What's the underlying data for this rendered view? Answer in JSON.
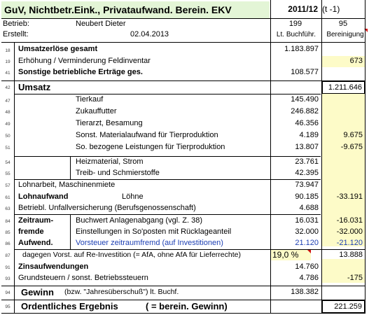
{
  "header": {
    "title": "GuV, Nichtbetr.Eink., Privataufwand. Berein. EKV",
    "year": "2011/12",
    "year_suffix": "(t -1)",
    "betrieb_label": "Betrieb:",
    "betrieb_value": "Neubert Dieter",
    "col1_no": "199",
    "col2_no": "95",
    "erstellt_label": "Erstellt:",
    "erstellt_value": "02.04.2013",
    "col1_head": "Lt. Buchführ.",
    "col2_head": "Bereinigung"
  },
  "rows": [
    {
      "nr": "18",
      "label": "Umsatzerlöse gesamt",
      "v1": "1.183.897",
      "v2": ""
    },
    {
      "nr": "19",
      "label": "Erhöhung / Verminderung Feldinventar",
      "v1": "",
      "v2": "673"
    },
    {
      "nr": "41",
      "label": "Sonstige betriebliche Erträge ges.",
      "v1": "108.577",
      "v2": ""
    },
    {
      "nr": "42",
      "label": "Umsatz",
      "v1": "",
      "v2": "1.211.646"
    },
    {
      "nr": "47",
      "label": "Tierkauf",
      "v1": "145.490",
      "v2": ""
    },
    {
      "nr": "48",
      "label": "Zukauffutter",
      "v1": "246.882",
      "v2": ""
    },
    {
      "nr": "49",
      "label": "Tierarzt, Besamung",
      "v1": "46.356",
      "v2": ""
    },
    {
      "nr": "50",
      "label": "Sonst. Materialaufwand für Tierproduktion",
      "v1": "4.189",
      "v2": "9.675"
    },
    {
      "nr": "51",
      "label": "So. bezogene Leistungen für Tierproduktion",
      "v1": "13.807",
      "v2": "-9.675"
    },
    {
      "nr": "54",
      "label": "Heizmaterial, Strom",
      "v1": "23.761",
      "v2": ""
    },
    {
      "nr": "55",
      "label": "Treib- und Schmierstoffe",
      "v1": "42.395",
      "v2": ""
    },
    {
      "nr": "57",
      "label": "Lohnarbeit, Maschinenmiete",
      "v1": "73.947",
      "v2": ""
    },
    {
      "nr": "61",
      "label": "Lohnaufwand",
      "label2": "Löhne",
      "v1": "90.185",
      "v2": "-33.191"
    },
    {
      "nr": "63",
      "label": "Betriebl. Unfallversicherung (Berufsgenossenschaft)",
      "v1": "4.688",
      "v2": ""
    },
    {
      "nr": "84",
      "label": "Zeitraum-",
      "label2": "Buchwert Anlagenabgang (vgl. Z. 38)",
      "v1": "16.031",
      "v2": "-16.031"
    },
    {
      "nr": "85",
      "label": "fremde",
      "label2": "Einstellungen in So'posten mit Rücklageanteil",
      "v1": "32.000",
      "v2": "-32.000"
    },
    {
      "nr": "86",
      "label": "Aufwend.",
      "label2": "Vorsteuer zeitraumfremd (auf Investitionen)",
      "v1": "21.120",
      "v2": "-21.120"
    },
    {
      "nr": "87",
      "label": "dagegen Vorst. auf Re-Investition (= AfA, ohne AfA für Lieferrechte)",
      "pct": "19,0 %",
      "v1": "",
      "v2": "13.888"
    },
    {
      "nr": "91",
      "label": "Zinsaufwendungen",
      "v1": "14.760",
      "v2": ""
    },
    {
      "nr": "93",
      "label": "Grundsteuern / sonst. Betriebssteuern",
      "v1": "4.786",
      "v2": "-175"
    },
    {
      "nr": "94",
      "label": "Gewinn",
      "label2": "(bzw. \"Jahresüberschuß\") lt. Buchf.",
      "v1": "138.382",
      "v2": ""
    },
    {
      "nr": "95",
      "label": "Ordentliches Ergebnis",
      "label2": "( = berein. Gewinn)",
      "v1": "",
      "v2": "221.259"
    }
  ],
  "colors": {
    "yellow": "#fdfbc8",
    "green": "#e3f5d6",
    "blue": "#1d3fb3",
    "red_marker": "#d01010"
  }
}
